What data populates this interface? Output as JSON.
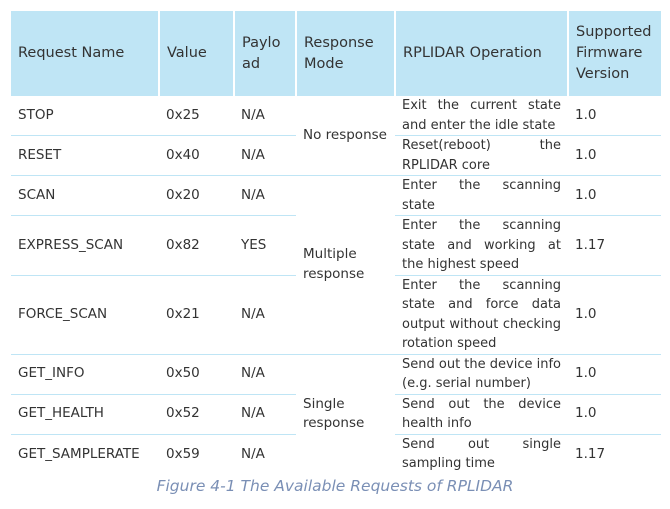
{
  "table": {
    "headers": {
      "name": "Request Name",
      "value": "Value",
      "payload": "Payload",
      "mode": "Response Mode",
      "operation": "RPLIDAR Operation",
      "firmware": "Supported Firmware Version"
    },
    "rows": [
      {
        "name": "STOP",
        "value": "0x25",
        "payload": "N/A",
        "mode": "No response",
        "operation": "Exit the current state and enter the idle state",
        "firmware": "1.0"
      },
      {
        "name": "RESET",
        "value": "0x40",
        "payload": "N/A",
        "operation": "Reset(reboot) the RPLIDAR core",
        "firmware": "1.0"
      },
      {
        "name": "SCAN",
        "value": "0x20",
        "payload": "N/A",
        "mode": "Multiple response",
        "operation": "Enter the scanning state",
        "firmware": "1.0"
      },
      {
        "name": "EXPRESS_SCAN",
        "value": "0x82",
        "payload": "YES",
        "operation": "Enter the scanning state and working at the highest speed",
        "firmware": "1.17"
      },
      {
        "name": "FORCE_SCAN",
        "value": "0x21",
        "payload": "N/A",
        "operation": "Enter the scanning state and force data output without checking rotation speed",
        "firmware": "1.0"
      },
      {
        "name": "GET_INFO",
        "value": "0x50",
        "payload": "N/A",
        "mode": "Single response",
        "operation": "Send out the device info (e.g. serial number)",
        "firmware": "1.0"
      },
      {
        "name": "GET_HEALTH",
        "value": "0x52",
        "payload": "N/A",
        "operation": "Send out the device health info",
        "firmware": "1.0"
      },
      {
        "name": "GET_SAMPLERATE",
        "value": "0x59",
        "payload": "N/A",
        "operation": "Send out single sampling time",
        "firmware": "1.17"
      }
    ]
  },
  "caption": "Figure 4-1 The Available Requests of RPLIDAR"
}
